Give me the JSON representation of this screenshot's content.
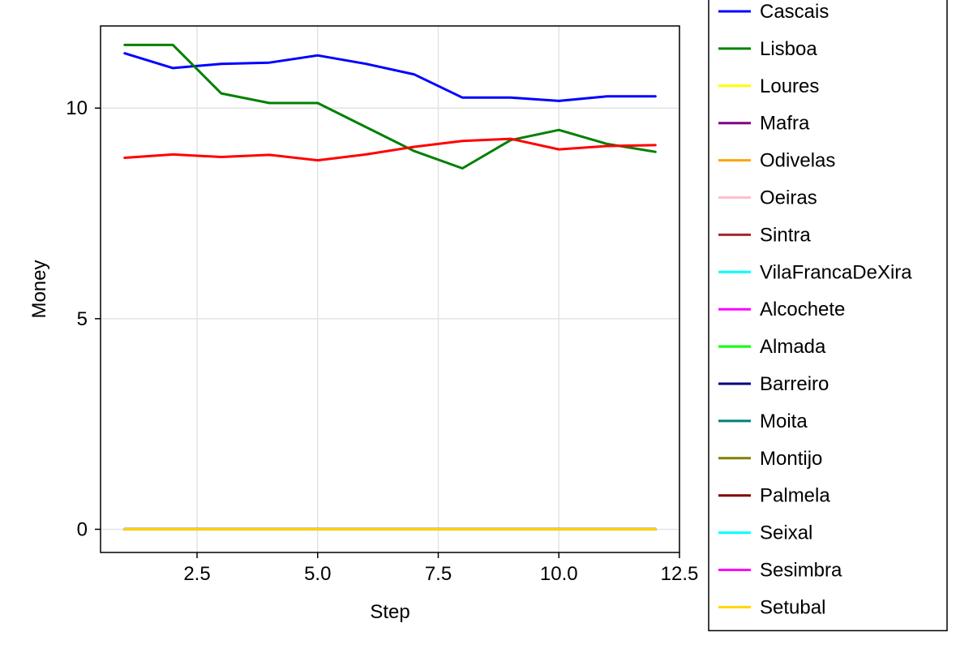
{
  "chart_data": {
    "type": "line",
    "title": "",
    "xlabel": "Step",
    "ylabel": "Money",
    "xlim": [
      0.5,
      12.5
    ],
    "ylim": [
      -0.55,
      11.95
    ],
    "xticks": [
      2.5,
      5.0,
      7.5,
      10.0,
      12.5
    ],
    "xtick_labels": [
      "2.5",
      "5.0",
      "7.5",
      "10.0",
      "12.5"
    ],
    "yticks": [
      0,
      5,
      10
    ],
    "ytick_labels": [
      "0",
      "5",
      "10"
    ],
    "grid": true,
    "legend_position": "right",
    "x": [
      1,
      2,
      3,
      4,
      5,
      6,
      7,
      8,
      9,
      10,
      11,
      12
    ],
    "series": [
      {
        "name": "Cascais",
        "color": "#0000ff",
        "values": [
          11.3,
          10.95,
          11.05,
          11.08,
          11.25,
          11.05,
          10.8,
          10.25,
          10.25,
          10.17,
          10.28,
          10.28
        ]
      },
      {
        "name": "Lisboa",
        "color": "#008000",
        "values": [
          11.5,
          11.5,
          10.35,
          10.12,
          10.12,
          9.55,
          8.98,
          8.57,
          9.24,
          9.48,
          9.15,
          8.96
        ]
      },
      {
        "name": "Loures",
        "color": "#ffff00",
        "values": [
          0,
          0,
          0,
          0,
          0,
          0,
          0,
          0,
          0,
          0,
          0,
          0
        ]
      },
      {
        "name": "Mafra",
        "color": "#800080",
        "values": [
          0,
          0,
          0,
          0,
          0,
          0,
          0,
          0,
          0,
          0,
          0,
          0
        ]
      },
      {
        "name": "Odivelas",
        "color": "#ffa500",
        "values": [
          0,
          0,
          0,
          0,
          0,
          0,
          0,
          0,
          0,
          0,
          0,
          0
        ]
      },
      {
        "name": "Oeiras",
        "color": "#ffc0cb",
        "values": [
          0,
          0,
          0,
          0,
          0,
          0,
          0,
          0,
          0,
          0,
          0,
          0
        ]
      },
      {
        "name": "Sintra",
        "color": "#a52a2a",
        "values": [
          0,
          0,
          0,
          0,
          0,
          0,
          0,
          0,
          0,
          0,
          0,
          0
        ]
      },
      {
        "name": "VilaFrancaDeXira",
        "color": "#00ffff",
        "values": [
          0,
          0,
          0,
          0,
          0,
          0,
          0,
          0,
          0,
          0,
          0,
          0
        ]
      },
      {
        "name": "Alcochete",
        "color": "#ff00ff",
        "values": [
          0,
          0,
          0,
          0,
          0,
          0,
          0,
          0,
          0,
          0,
          0,
          0
        ]
      },
      {
        "name": "Almada",
        "color": "#00ff00",
        "values": [
          0,
          0,
          0,
          0,
          0,
          0,
          0,
          0,
          0,
          0,
          0,
          0
        ]
      },
      {
        "name": "Barreiro",
        "color": "#000080",
        "values": [
          0,
          0,
          0,
          0,
          0,
          0,
          0,
          0,
          0,
          0,
          0,
          0
        ]
      },
      {
        "name": "Moita",
        "color": "#008080",
        "values": [
          0,
          0,
          0,
          0,
          0,
          0,
          0,
          0,
          0,
          0,
          0,
          0
        ]
      },
      {
        "name": "Montijo",
        "color": "#808000",
        "values": [
          0,
          0,
          0,
          0,
          0,
          0,
          0,
          0,
          0,
          0,
          0,
          0
        ]
      },
      {
        "name": "Palmela",
        "color": "#800000",
        "values": [
          0,
          0,
          0,
          0,
          0,
          0,
          0,
          0,
          0,
          0,
          0,
          0
        ]
      },
      {
        "name": "Seixal",
        "color": "#00ffff",
        "values": [
          0,
          0,
          0,
          0,
          0,
          0,
          0,
          0,
          0,
          0,
          0,
          0
        ]
      },
      {
        "name": "Sesimbra",
        "color": "#ff00ff",
        "values": [
          0,
          0,
          0,
          0,
          0,
          0,
          0,
          0,
          0,
          0,
          0,
          0
        ]
      },
      {
        "name": "Setubal",
        "color": "#ffd700",
        "values": [
          0,
          0,
          0,
          0,
          0,
          0,
          0,
          0,
          0,
          0,
          0,
          0
        ]
      },
      {
        "name": "",
        "color": "#ff0000",
        "values": [
          8.82,
          8.9,
          8.84,
          8.89,
          8.76,
          8.9,
          9.08,
          9.22,
          9.27,
          9.02,
          9.1,
          9.12
        ]
      }
    ]
  }
}
